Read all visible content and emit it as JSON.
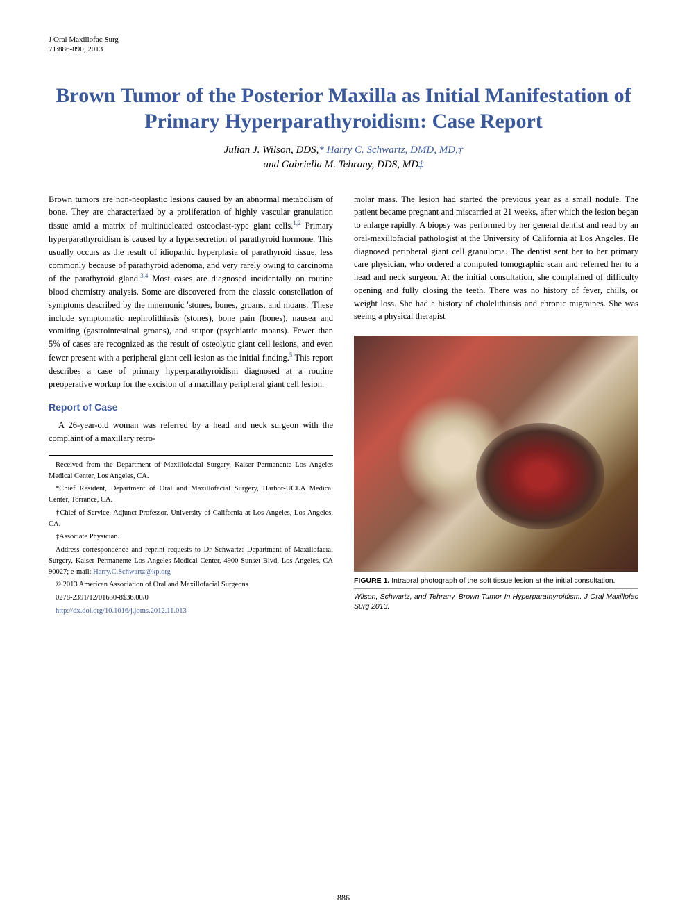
{
  "journal_ref": {
    "line1": "J Oral Maxillofac Surg",
    "line2": "71:886-890, 2013"
  },
  "title": "Brown Tumor of the Posterior Maxilla as Initial Manifestation of Primary Hyperparathyroidism: Case Report",
  "authors": {
    "line1_a": "Julian J. Wilson, DDS,",
    "line1_b": "* Harry C. Schwartz, DMD, MD,",
    "line1_c": "†",
    "line2_a": "and Gabriella M. Tehrany, DDS, MD",
    "line2_b": "‡"
  },
  "left_column": {
    "intro_para": "Brown tumors are non-neoplastic lesions caused by an abnormal metabolism of bone. They are characterized by a proliferation of highly vascular granulation tissue amid a matrix of multinucleated osteoclast-type giant cells.",
    "sup1": "1,2",
    "intro_cont1": " Primary hyperparathyroidism is caused by a hypersecretion of parathyroid hormone. This usually occurs as the result of idiopathic hyperplasia of parathyroid tissue, less commonly because of parathyroid adenoma, and very rarely owing to carcinoma of the parathyroid gland.",
    "sup2": "3,4",
    "intro_cont2": " Most cases are diagnosed incidentally on routine blood chemistry analysis. Some are discovered from the classic constellation of symptoms described by the mnemonic 'stones, bones, groans, and moans.' These include symptomatic nephrolithiasis (stones), bone pain (bones), nausea and vomiting (gastrointestinal groans), and stupor (psychiatric moans). Fewer than 5% of cases are recognized as the result of osteolytic giant cell lesions, and even fewer present with a peripheral giant cell lesion as the initial finding.",
    "sup3": "5",
    "intro_cont3": " This report describes a case of primary hyperparathyroidism diagnosed at a routine preoperative workup for the excision of a maxillary peripheral giant cell lesion.",
    "section_head": "Report of Case",
    "case_para": "A 26-year-old woman was referred by a head and neck surgeon with the complaint of a maxillary retro-"
  },
  "affiliations": {
    "received": "Received from the Department of Maxillofacial Surgery, Kaiser Permanente Los Angeles Medical Center, Los Angeles, CA.",
    "a1": "*Chief Resident, Department of Oral and Maxillofacial Surgery, Harbor-UCLA Medical Center, Torrance, CA.",
    "a2": "†Chief of Service, Adjunct Professor, University of California at Los Angeles, Los Angeles, CA.",
    "a3": "‡Associate Physician.",
    "corr": "Address correspondence and reprint requests to Dr Schwartz: Department of Maxillofacial Surgery, Kaiser Permanente Los Angeles Medical Center, 4900 Sunset Blvd, Los Angeles, CA 90027; e-mail: ",
    "email": "Harry.C.Schwartz@kp.org",
    "copyright": "© 2013 American Association of Oral and Maxillofacial Surgeons",
    "code": "0278-2391/12/01630-8$36.00/0",
    "doi": "http://dx.doi.org/10.1016/j.joms.2012.11.013"
  },
  "right_column": {
    "para": "molar mass. The lesion had started the previous year as a small nodule. The patient became pregnant and miscarried at 21 weeks, after which the lesion began to enlarge rapidly. A biopsy was performed by her general dentist and read by an oral-maxillofacial pathologist at the University of California at Los Angeles. He diagnosed peripheral giant cell granuloma. The dentist sent her to her primary care physician, who ordered a computed tomographic scan and referred her to a head and neck surgeon. At the initial consultation, she complained of difficulty opening and fully closing the teeth. There was no history of fever, chills, or weight loss. She had a history of cholelithiasis and chronic migraines. She was seeing a physical therapist"
  },
  "figure": {
    "label": "FIGURE 1.",
    "caption": " Intraoral photograph of the soft tissue lesion at the initial consultation.",
    "credit": "Wilson, Schwartz, and Tehrany. Brown Tumor In Hyperparathyroidism. J Oral Maxillofac Surg 2013."
  },
  "page_number": "886",
  "colors": {
    "link": "#3b5998",
    "heading": "#3b5998",
    "text": "#000000",
    "bg": "#ffffff"
  }
}
